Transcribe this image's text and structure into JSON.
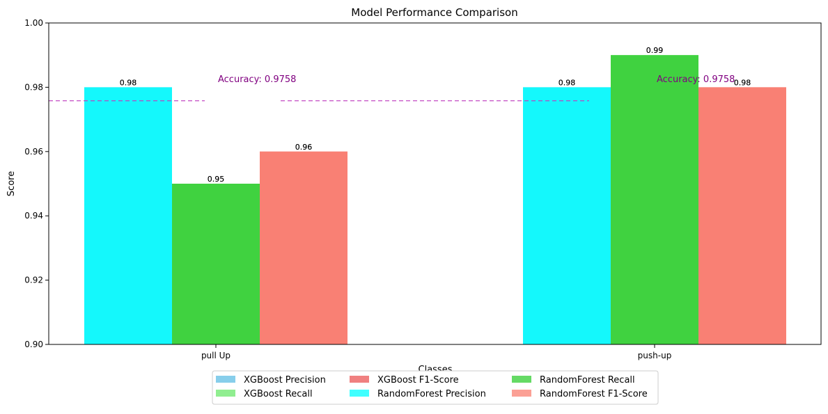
{
  "chart_data": {
    "type": "bar",
    "title": "Model Performance Comparison",
    "xlabel": "Classes",
    "ylabel": "Score",
    "ylim": [
      0.9,
      1.0
    ],
    "yticks": [
      "0.90",
      "0.92",
      "0.94",
      "0.96",
      "0.98",
      "1.00"
    ],
    "categories": [
      "pull Up",
      "push-up"
    ],
    "grid": false,
    "legend_position": "bottom-center",
    "series": [
      {
        "name": "XGBoost Precision",
        "color": "#87ceeb",
        "values": [
          0.98,
          0.98
        ],
        "labels": [
          "0.98",
          "0.98"
        ]
      },
      {
        "name": "XGBoost Recall",
        "color": "#90ee90",
        "values": [
          0.95,
          0.99
        ],
        "labels": [
          "0.95",
          "0.99"
        ]
      },
      {
        "name": "XGBoost F1-Score",
        "color": "#f08080",
        "values": [
          0.96,
          0.98
        ],
        "labels": [
          "0.96",
          "0.98"
        ]
      },
      {
        "name": "RandomForest Precision",
        "color": "#00ffff",
        "values": [
          0.98,
          0.98
        ],
        "labels": [
          "0.98",
          "0.98"
        ]
      },
      {
        "name": "RandomForest Recall",
        "color": "#32cd32",
        "values": [
          0.95,
          0.99
        ],
        "labels": [
          "0.95",
          "0.99"
        ]
      },
      {
        "name": "RandomForest F1-Score",
        "color": "#fa8072",
        "values": [
          0.96,
          0.98
        ],
        "labels": [
          "0.96",
          "0.98"
        ]
      }
    ],
    "accuracy_lines": [
      {
        "value": 0.9758,
        "label": "Accuracy: 0.9758",
        "color": "#bf40bf",
        "text_color": "#800080"
      },
      {
        "value": 0.9758,
        "label": "Accuracy: 0.9758",
        "color": "#bf40bf",
        "text_color": "#800080"
      }
    ]
  }
}
